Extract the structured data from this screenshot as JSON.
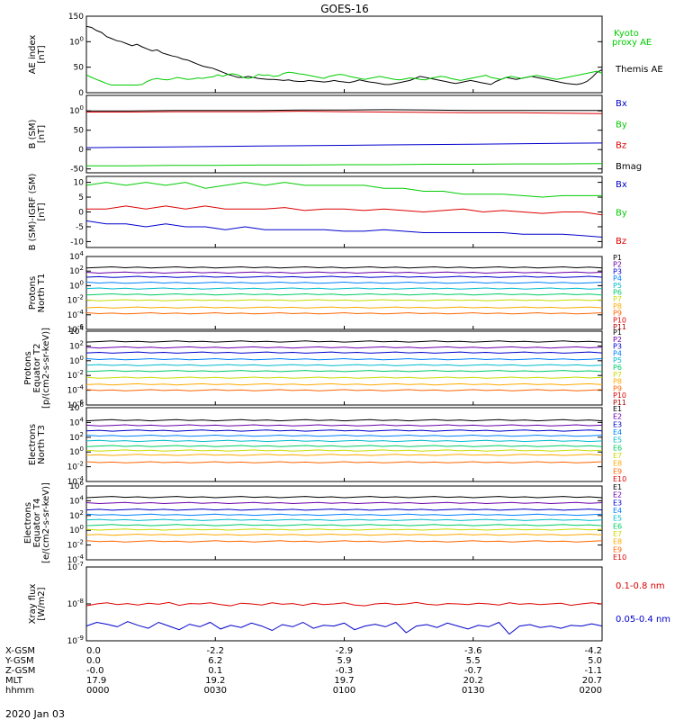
{
  "title": "GOES-16",
  "date": "2020 Jan 03",
  "colors": {
    "black": "#000000",
    "red": "#dd0000",
    "green": "#00cc00",
    "blue": "#0000cc",
    "p": [
      "#000000",
      "#6a00aa",
      "#0000cc",
      "#0080ff",
      "#00bbcc",
      "#00cc66",
      "#c8dc00",
      "#ffaa00",
      "#ff6600",
      "#dd0000",
      "#aa0000"
    ]
  },
  "time_axis": {
    "rows": [
      "X-GSM",
      "Y-GSM",
      "Z-GSM",
      "MLT",
      "hhmm"
    ],
    "columns": [
      {
        "x": "0.0",
        "y": "0.0",
        "z": "-0.0",
        "mlt": "17.9",
        "hhmm": "0000"
      },
      {
        "x": "-2.2",
        "y": "6.2",
        "z": "0.1",
        "mlt": "19.2",
        "hhmm": "0030"
      },
      {
        "x": "-2.9",
        "y": "5.9",
        "z": "-0.3",
        "mlt": "19.7",
        "hhmm": "0100"
      },
      {
        "x": "-3.6",
        "y": "5.5",
        "z": "-0.7",
        "mlt": "20.2",
        "hhmm": "0130"
      },
      {
        "x": "-4.2",
        "y": "5.0",
        "z": "-1.1",
        "mlt": "20.7",
        "hhmm": "0200"
      }
    ]
  },
  "chart_data": [
    {
      "type": "line",
      "id": "ae",
      "ylabel": [
        "AE index",
        "[nT]"
      ],
      "ylim": [
        0,
        150
      ],
      "yticks": [
        "0",
        "50",
        "100",
        "150"
      ],
      "legend": [
        {
          "label": "Kyoto",
          "color": "green"
        },
        {
          "label": "proxy AE",
          "color": "green"
        },
        {
          "label": "Themis AE",
          "color": "black"
        }
      ],
      "series": [
        {
          "name": "Themis AE",
          "color": "black",
          "values": [
            130,
            128,
            122,
            118,
            110,
            106,
            102,
            100,
            96,
            92,
            95,
            90,
            86,
            82,
            84,
            78,
            75,
            72,
            70,
            66,
            64,
            60,
            56,
            52,
            50,
            48,
            44,
            40,
            36,
            33,
            30,
            30,
            32,
            30,
            28,
            27,
            26,
            26,
            25,
            24,
            25,
            23,
            22,
            22,
            24,
            23,
            22,
            21,
            22,
            24,
            22,
            21,
            20,
            22,
            25,
            23,
            21,
            20,
            18,
            16,
            16,
            18,
            20,
            22,
            24,
            28,
            32,
            30,
            28,
            26,
            24,
            22,
            20,
            18,
            20,
            22,
            24,
            22,
            20,
            18,
            16,
            22,
            26,
            30,
            28,
            26,
            28,
            30,
            32,
            30,
            28,
            26,
            24,
            22,
            20,
            18,
            17,
            16,
            18,
            22,
            30,
            40,
            45
          ]
        },
        {
          "name": "Kyoto proxy AE",
          "color": "green",
          "values": [
            35,
            30,
            26,
            22,
            18,
            15,
            15,
            15,
            15,
            15,
            15,
            16,
            22,
            26,
            28,
            26,
            25,
            27,
            30,
            28,
            26,
            27,
            29,
            28,
            30,
            31,
            35,
            32,
            36,
            37,
            35,
            30,
            28,
            30,
            36,
            34,
            35,
            32,
            33,
            38,
            40,
            39,
            37,
            36,
            34,
            32,
            30,
            28,
            32,
            34,
            36,
            35,
            32,
            30,
            28,
            26,
            28,
            30,
            32,
            30,
            28,
            26,
            25,
            27,
            29,
            28,
            26,
            25,
            28,
            30,
            32,
            31,
            28,
            26,
            24,
            26,
            28,
            30,
            32,
            34,
            30,
            28,
            26,
            30,
            32,
            30,
            28,
            30,
            32,
            34,
            32,
            30,
            28,
            26,
            28,
            30,
            32,
            34,
            36,
            38,
            40,
            42,
            38
          ]
        }
      ]
    },
    {
      "type": "line",
      "id": "bsm",
      "ylabel": [
        "B (SM)",
        "[nT]"
      ],
      "ylim": [
        -60,
        140
      ],
      "yticks": [
        "-50",
        "0",
        "50",
        "100"
      ],
      "legend": [
        {
          "label": "Bx",
          "color": "blue"
        },
        {
          "label": "By",
          "color": "green"
        },
        {
          "label": "Bz",
          "color": "red"
        },
        {
          "label": "Bmag",
          "color": "black"
        }
      ],
      "series": [
        {
          "name": "Bmag",
          "color": "black",
          "values": [
            100,
            100,
            101,
            101,
            101,
            102,
            102,
            103,
            102,
            101,
            101,
            101,
            101
          ]
        },
        {
          "name": "Bz",
          "color": "red",
          "values": [
            97,
            97,
            98,
            98,
            98,
            99,
            98,
            97,
            96,
            95,
            95,
            94,
            93
          ]
        },
        {
          "name": "Bx",
          "color": "blue",
          "values": [
            5,
            6,
            7,
            8,
            9,
            10,
            11,
            12,
            13,
            14,
            15,
            16,
            17
          ]
        },
        {
          "name": "By",
          "color": "green",
          "values": [
            -42,
            -42,
            -41,
            -41,
            -40,
            -40,
            -39,
            -39,
            -38,
            -38,
            -37,
            -37,
            -36
          ]
        }
      ]
    },
    {
      "type": "line",
      "id": "bdiff",
      "ylabel": [
        "B (SM)-IGRF (SM)",
        "[nT]"
      ],
      "ylim": [
        -12,
        12
      ],
      "yticks": [
        "-10",
        "-5",
        "0",
        "5",
        "10"
      ],
      "legend": [
        {
          "label": "Bx",
          "color": "blue"
        },
        {
          "label": "By",
          "color": "green"
        },
        {
          "label": "Bz",
          "color": "red"
        }
      ],
      "series": [
        {
          "name": "By",
          "color": "green",
          "values": [
            9,
            10,
            9,
            10,
            9,
            10,
            8,
            9,
            10,
            9,
            10,
            9,
            9,
            9,
            9,
            8,
            8,
            7,
            7,
            6,
            6,
            6,
            5.5,
            5,
            5.5,
            5.5,
            5.5
          ]
        },
        {
          "name": "Bz",
          "color": "red",
          "values": [
            1,
            1,
            2,
            1,
            2,
            1,
            2,
            1,
            1,
            1,
            1.5,
            0.5,
            1,
            1,
            0.5,
            1,
            0.5,
            0,
            0.5,
            1,
            0,
            0.5,
            0,
            -0.5,
            0,
            0,
            -1
          ]
        },
        {
          "name": "Bx",
          "color": "blue",
          "values": [
            -3,
            -4,
            -4,
            -5,
            -4,
            -5,
            -5,
            -6,
            -5,
            -6,
            -6,
            -6,
            -6,
            -6.5,
            -6.5,
            -6,
            -6.5,
            -7,
            -7,
            -7,
            -7,
            -7,
            -7.5,
            -7.5,
            -7.5,
            -8,
            -8.5
          ]
        }
      ]
    },
    {
      "type": "line",
      "id": "protons_north",
      "ylabel": [
        "Protons",
        "North T1"
      ],
      "scale": "log",
      "ylim": [
        -6,
        4
      ],
      "yticks": [
        "10-6",
        "10-4",
        "10-2",
        "100",
        "102",
        "104"
      ],
      "legend": [
        "P1",
        "P2",
        "P3",
        "P4",
        "P5",
        "P6",
        "P7",
        "P8",
        "P9",
        "P10",
        "P11"
      ],
      "levels": [
        2.5,
        1.8,
        1.2,
        0.4,
        -0.4,
        -1.2,
        -2.0,
        -3.0,
        -3.8
      ]
    },
    {
      "type": "line",
      "id": "protons_equator",
      "ylabel": [
        "Protons",
        "Equator T2",
        "[p/(cm2-s-sr-keV)]"
      ],
      "scale": "log",
      "ylim": [
        -6,
        4
      ],
      "yticks": [
        "10-6",
        "10-4",
        "10-2",
        "100",
        "102",
        "104"
      ],
      "legend": [
        "P1",
        "P2",
        "P3",
        "P4",
        "P5",
        "P6",
        "P7",
        "P8",
        "P9",
        "P10",
        "P11"
      ],
      "levels": [
        2.6,
        1.8,
        1.1,
        0.2,
        -0.6,
        -1.4,
        -2.3,
        -3.2,
        -4.0
      ]
    },
    {
      "type": "line",
      "id": "electrons_north",
      "ylabel": [
        "Electrons",
        "North T3"
      ],
      "scale": "log",
      "ylim": [
        -4,
        6
      ],
      "yticks": [
        "10-4",
        "10-2",
        "100",
        "102",
        "104",
        "106"
      ],
      "legend": [
        "E1",
        "E2",
        "E3",
        "E4",
        "E5",
        "E6",
        "E7",
        "E8",
        "E9",
        "E10"
      ],
      "levels": [
        4.3,
        3.6,
        2.9,
        2.2,
        1.5,
        0.8,
        0.2,
        -0.4,
        -1.4
      ]
    },
    {
      "type": "line",
      "id": "electrons_equator",
      "ylabel": [
        "Electrons",
        "Equator T4",
        "[e/(cm2-s-sr-keV)]"
      ],
      "scale": "log",
      "ylim": [
        -4,
        6
      ],
      "yticks": [
        "10-4",
        "10-2",
        "100",
        "102",
        "104",
        "106"
      ],
      "legend": [
        "E1",
        "E2",
        "E3",
        "E4",
        "E5",
        "E6",
        "E7",
        "E8",
        "E9",
        "E10"
      ],
      "levels": [
        4.5,
        3.7,
        2.8,
        2.1,
        1.4,
        0.7,
        0.1,
        -0.6,
        -1.5
      ]
    },
    {
      "type": "line",
      "id": "xray",
      "ylabel": [
        "Xray flux",
        "[W/m2]"
      ],
      "scale": "log",
      "ylim": [
        -9,
        -7
      ],
      "yticks": [
        "10-9",
        "10-8",
        "10-7"
      ],
      "legend": [
        {
          "label": "0.1-0.8 nm",
          "color": "red"
        },
        {
          "label": "0.05-0.4 nm",
          "color": "blue"
        }
      ],
      "series": [
        {
          "name": "0.1-0.8 nm",
          "color": "red",
          "values": [
            -8.05,
            -8.0,
            -7.97,
            -8.02,
            -7.99,
            -8.03,
            -7.98,
            -8.01,
            -7.96,
            -8.04,
            -7.99,
            -8.0,
            -7.97,
            -8.02,
            -8.05,
            -7.98,
            -8.0,
            -8.03,
            -7.97,
            -8.01,
            -7.99,
            -8.04,
            -7.98,
            -8.02,
            -8.0,
            -7.97,
            -8.03,
            -8.05,
            -8.0,
            -7.98,
            -8.02,
            -8.0,
            -7.96,
            -8.01,
            -8.03,
            -7.99,
            -8.0,
            -8.02,
            -7.98,
            -8.0,
            -8.03,
            -7.97,
            -8.01,
            -7.99,
            -8.02,
            -8.0,
            -7.98,
            -8.04,
            -8.0,
            -7.97,
            -8.0
          ]
        },
        {
          "name": "0.05-0.4 nm",
          "color": "blue",
          "values": [
            -8.6,
            -8.5,
            -8.55,
            -8.62,
            -8.48,
            -8.58,
            -8.66,
            -8.5,
            -8.6,
            -8.7,
            -8.55,
            -8.62,
            -8.5,
            -8.68,
            -8.58,
            -8.64,
            -8.52,
            -8.6,
            -8.72,
            -8.56,
            -8.62,
            -8.5,
            -8.66,
            -8.58,
            -8.6,
            -8.52,
            -8.7,
            -8.6,
            -8.55,
            -8.62,
            -8.5,
            -8.78,
            -8.6,
            -8.56,
            -8.64,
            -8.52,
            -8.6,
            -8.68,
            -8.58,
            -8.62,
            -8.5,
            -8.82,
            -8.6,
            -8.56,
            -8.64,
            -8.6,
            -8.66,
            -8.58,
            -8.6,
            -8.54,
            -8.6
          ]
        }
      ]
    }
  ]
}
